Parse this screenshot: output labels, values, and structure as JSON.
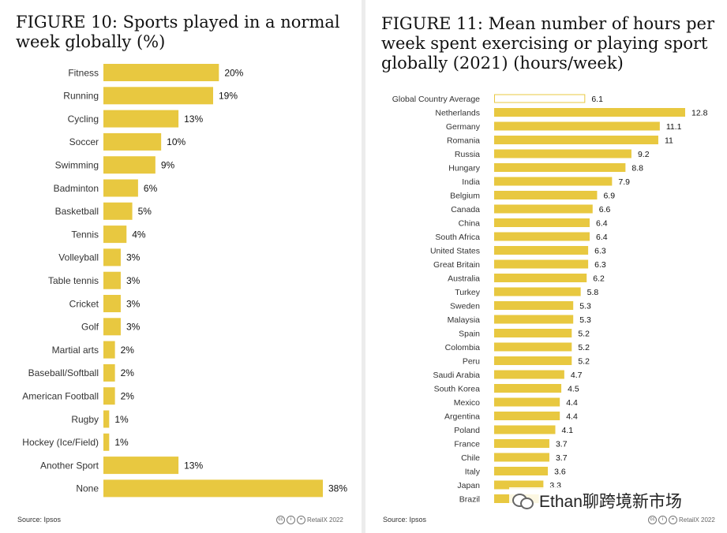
{
  "chart_data": [
    {
      "type": "bar",
      "orientation": "horizontal",
      "title": "FIGURE 10: Sports played in a normal week globally (%)",
      "categories": [
        "Fitness",
        "Running",
        "Cycling",
        "Soccer",
        "Swimming",
        "Badminton",
        "Basketball",
        "Tennis",
        "Volleyball",
        "Table tennis",
        "Cricket",
        "Golf",
        "Martial arts",
        "Baseball/Softball",
        "American Football",
        "Rugby",
        "Hockey (Ice/Field)",
        "Another Sport",
        "None"
      ],
      "values": [
        20,
        19,
        13,
        10,
        9,
        6,
        5,
        4,
        3,
        3,
        3,
        3,
        2,
        2,
        2,
        1,
        1,
        13,
        38
      ],
      "value_labels": [
        "20%",
        "19%",
        "13%",
        "10%",
        "9%",
        "6%",
        "5%",
        "4%",
        "3%",
        "3%",
        "3%",
        "3%",
        "2%",
        "2%",
        "2%",
        "1%",
        "1%",
        "13%",
        "38%"
      ],
      "xlim": [
        0,
        38
      ],
      "source": "Source: Ipsos",
      "credit": "RetailX 2022"
    },
    {
      "type": "bar",
      "orientation": "horizontal",
      "title": "FIGURE 11: Mean number of hours per week spent exercising or playing sport globally (2021) (hours/week)",
      "categories": [
        "Global Country Average",
        "Netherlands",
        "Germany",
        "Romania",
        "Russia",
        "Hungary",
        "India",
        "Belgium",
        "Canada",
        "China",
        "South Africa",
        "United States",
        "Great Britain",
        "Australia",
        "Turkey",
        "Sweden",
        "Malaysia",
        "Spain",
        "Colombia",
        "Peru",
        "Saudi Arabia",
        "South Korea",
        "Mexico",
        "Argentina",
        "Poland",
        "France",
        "Chile",
        "Italy",
        "Japan",
        "Brazil"
      ],
      "values": [
        6.1,
        12.8,
        11.1,
        11,
        9.2,
        8.8,
        7.9,
        6.9,
        6.6,
        6.4,
        6.4,
        6.3,
        6.3,
        6.2,
        5.8,
        5.3,
        5.3,
        5.2,
        5.2,
        5.2,
        4.7,
        4.5,
        4.4,
        4.4,
        4.1,
        3.7,
        3.7,
        3.6,
        3.3,
        3.0
      ],
      "value_labels": [
        "6.1",
        "12.8",
        "11.1",
        "11",
        "9.2",
        "8.8",
        "7.9",
        "6.9",
        "6.6",
        "6.4",
        "6.4",
        "6.3",
        "6.3",
        "6.2",
        "5.8",
        "5.3",
        "5.3",
        "5.2",
        "5.2",
        "5.2",
        "4.7",
        "4.5",
        "4.4",
        "4.4",
        "4.1",
        "3.7",
        "3.7",
        "3.6",
        "3.3",
        ""
      ],
      "highlight_category": "Global Country Average",
      "xlim": [
        0,
        12.8
      ],
      "source": "Source: Ipsos",
      "credit": "RetailX 2022"
    }
  ],
  "colors": {
    "bar": "#e8c840",
    "highlight_fill": "#ffffff",
    "highlight_stroke": "#e8c840"
  },
  "icons": [
    "cc-icon",
    "by-icon",
    "nd-icon",
    "wechat-logo-icon"
  ],
  "watermark": "Ethan聊跨境新市场"
}
